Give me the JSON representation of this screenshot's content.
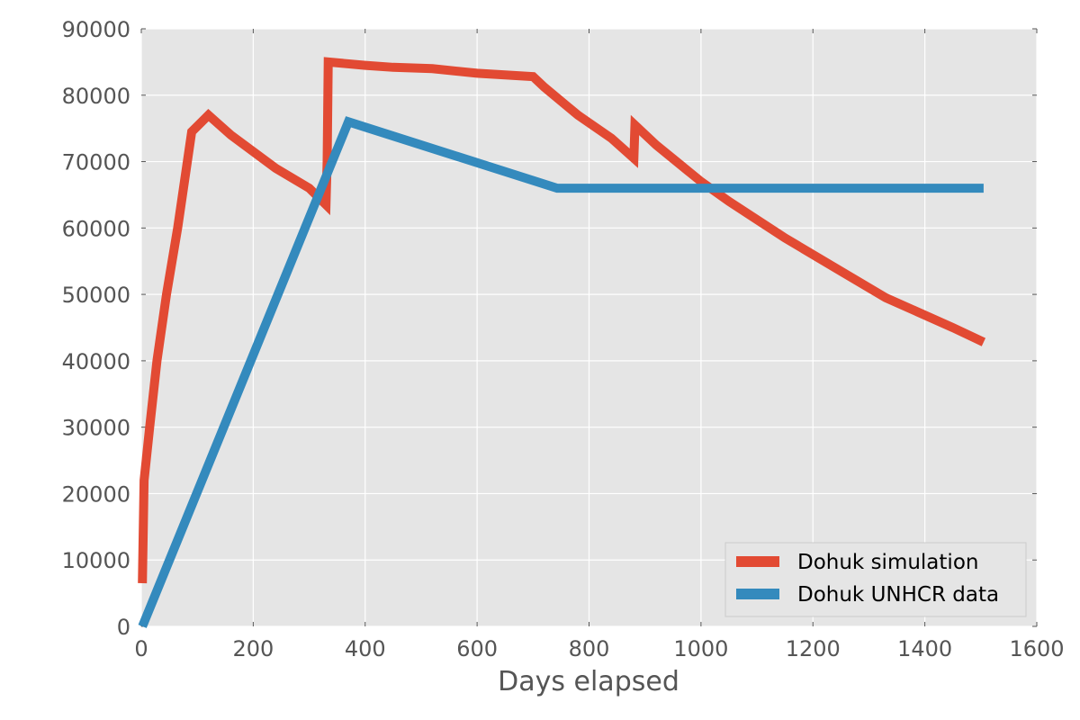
{
  "chart_data": {
    "type": "line",
    "xlabel": "Days elapsed",
    "ylabel": "",
    "xlim": [
      0,
      1600
    ],
    "ylim": [
      0,
      90000
    ],
    "xticks": [
      0,
      200,
      400,
      600,
      800,
      1000,
      1200,
      1400,
      1600
    ],
    "yticks": [
      0,
      10000,
      20000,
      30000,
      40000,
      50000,
      60000,
      70000,
      80000,
      90000
    ],
    "grid": true,
    "legend_position": "lower-right",
    "colors": {
      "background": "#e5e5e5",
      "grid": "#ffffff",
      "simulation": "#e24a33",
      "unhcr": "#348abd"
    },
    "series": [
      {
        "name": "Dohuk simulation",
        "color": "#e24a33",
        "points": [
          [
            2,
            6500
          ],
          [
            5,
            22000
          ],
          [
            15,
            30000
          ],
          [
            28,
            40000
          ],
          [
            45,
            50000
          ],
          [
            65,
            60000
          ],
          [
            90,
            74500
          ],
          [
            120,
            77000
          ],
          [
            160,
            74000
          ],
          [
            240,
            69000
          ],
          [
            300,
            66000
          ],
          [
            330,
            63500
          ],
          [
            332,
            70000
          ],
          [
            334,
            85000
          ],
          [
            400,
            84500
          ],
          [
            450,
            84200
          ],
          [
            520,
            84000
          ],
          [
            600,
            83300
          ],
          [
            700,
            82800
          ],
          [
            720,
            81200
          ],
          [
            780,
            77000
          ],
          [
            840,
            73500
          ],
          [
            880,
            70500
          ],
          [
            882,
            75500
          ],
          [
            920,
            72500
          ],
          [
            1000,
            67000
          ],
          [
            1050,
            64000
          ],
          [
            1150,
            58500
          ],
          [
            1250,
            53500
          ],
          [
            1330,
            49500
          ],
          [
            1450,
            45000
          ],
          [
            1505,
            42800
          ]
        ]
      },
      {
        "name": "Dohuk UNHCR data",
        "color": "#348abd",
        "points": [
          [
            2,
            0
          ],
          [
            370,
            76000
          ],
          [
            743,
            66000
          ],
          [
            1505,
            66000
          ]
        ]
      }
    ]
  }
}
